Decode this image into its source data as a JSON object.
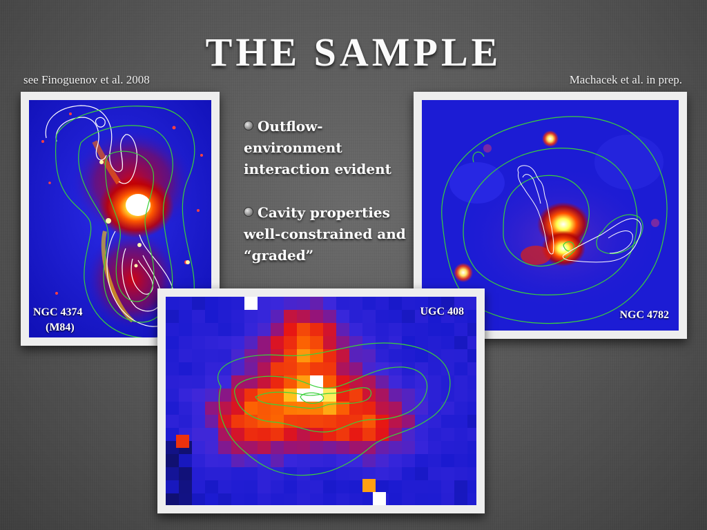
{
  "slide": {
    "title": "THE SAMPLE",
    "ref_left": "see Finoguenov et al. 2008",
    "ref_right": "Machacek et al. in prep."
  },
  "bullets": [
    {
      "text": "Outflow-environment interaction evident"
    },
    {
      "text": "Cavity properties well-constrained and “graded”"
    }
  ],
  "images": {
    "ngc4374": {
      "label": "NGC 4374",
      "sublabel": "(M84)"
    },
    "ngc4782": {
      "label": "NGC 4782"
    },
    "ugc408": {
      "label": "UGC 408"
    }
  },
  "colors": {
    "contour_green": "#3bd13b",
    "contour_white": "#ffffff",
    "background_sky": "#1a1ad8",
    "frame": "#eeeeee"
  }
}
